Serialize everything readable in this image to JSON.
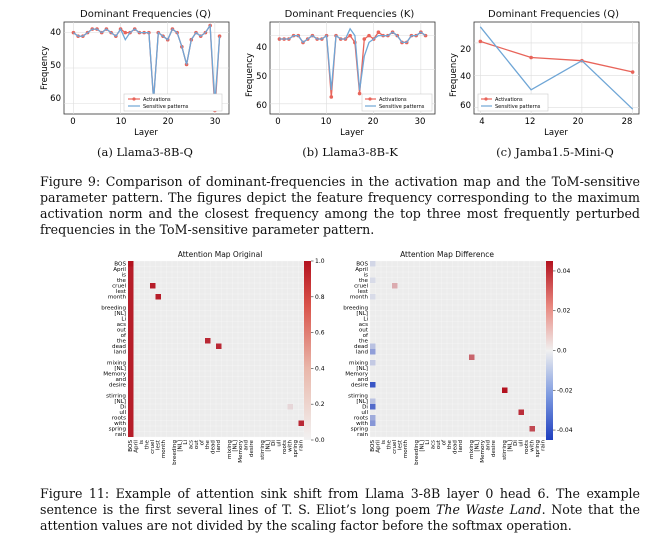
{
  "line_charts": [
    {
      "id": "q",
      "title": "Dominant Frequencies (Q)",
      "xlabel": "Layer",
      "ylabel": "Frequency",
      "xticks": [
        0,
        10,
        20,
        30
      ],
      "yticks": [
        40,
        50,
        60
      ],
      "subcaption": "(a) Llama3-8B-Q"
    },
    {
      "id": "k",
      "title": "Dominant Frequencies (K)",
      "xlabel": "Layer",
      "ylabel": "Frequency",
      "xticks": [
        0,
        10,
        20,
        30
      ],
      "yticks": [
        40,
        50,
        60
      ],
      "subcaption": "(b) Llama3-8B-K"
    },
    {
      "id": "jamba",
      "title": "Dominant Frequencies (Q)",
      "xlabel": "Layer",
      "ylabel": "Frequency",
      "xticks": [
        4,
        12,
        20,
        28
      ],
      "yticks": [
        20,
        40,
        60
      ],
      "subcaption": "(c) Jamba1.5-Mini-Q"
    }
  ],
  "legend": {
    "activations": "Activations",
    "sensitive": "Sensitive patterns"
  },
  "colors": {
    "activations": "#e8645a",
    "sensitive": "#6fa6d6",
    "heat_high": "#c41e2a",
    "heat_low": "#2b4fc4",
    "grid": "#dddddd",
    "heat_bg": "#ececec"
  },
  "captions": {
    "fig9": "Figure 9: Comparison of dominant-frequencies in the activation map and the ToM-sensitive parameter pattern. The figures depict the feature frequency corresponding to the maximum activation norm and the closest frequency among the top three most frequently perturbed frequencies in the ToM-sensitive parameter pattern.",
    "fig11_a": "Figure 11: Example of attention sink shift from Llama 3-8B layer 0 head 6. The example sentence is the first several lines of T. S. Eliot’s long poem ",
    "fig11_em": "The Waste Land",
    "fig11_b": ". Note that the attention values are not divided by the scaling factor before the softmax operation."
  },
  "heatmaps": {
    "original_title": "Attention Map Original",
    "difference_title": "Attention Map Difference",
    "tokens": [
      "BOS",
      "April",
      "is",
      "the",
      "cruel",
      "lest",
      "month",
      "",
      "breeding",
      "[NL]",
      "Li",
      "acs",
      "out",
      "of",
      "the",
      "dead",
      "land",
      "",
      "mixing",
      "[NL]",
      "Memory",
      "and",
      "desire",
      "",
      "stirring",
      "[NL]",
      "Di",
      "ull",
      "roots",
      "with",
      "spring",
      "rain"
    ],
    "original_colorbar": [
      0.0,
      0.2,
      0.4,
      0.6,
      0.8,
      1.0
    ],
    "difference_colorbar": [
      -0.04,
      -0.02,
      0.0,
      0.02,
      0.04
    ]
  },
  "chart_data": [
    {
      "type": "line",
      "title": "Dominant Frequencies (Q)",
      "xlabel": "Layer",
      "ylabel": "Frequency",
      "xlim": [
        -2,
        33
      ],
      "ylim": [
        63,
        37
      ],
      "y_inverted": true,
      "x": [
        0,
        1,
        2,
        3,
        4,
        5,
        6,
        7,
        8,
        9,
        10,
        11,
        12,
        13,
        14,
        15,
        16,
        17,
        18,
        19,
        20,
        21,
        22,
        23,
        24,
        25,
        26,
        27,
        28,
        29,
        30,
        31
      ],
      "series": [
        {
          "name": "Activations",
          "values": [
            40,
            41,
            41,
            40,
            39,
            39,
            40,
            39,
            40,
            41,
            39,
            40,
            40,
            39,
            40,
            40,
            40,
            59,
            40,
            41,
            42,
            39,
            40,
            44,
            49,
            42,
            40,
            41,
            40,
            38,
            62,
            41
          ]
        },
        {
          "name": "Sensitive patterns",
          "values": [
            40,
            41,
            41,
            40,
            39,
            39,
            40,
            39,
            40,
            41,
            39,
            42,
            40,
            39,
            40,
            40,
            40,
            59,
            40,
            41,
            42,
            39,
            40,
            44,
            49,
            42,
            40,
            41,
            40,
            38,
            60,
            41
          ]
        }
      ]
    },
    {
      "type": "line",
      "title": "Dominant Frequencies (K)",
      "xlabel": "Layer",
      "ylabel": "Frequency",
      "xlim": [
        -2,
        33
      ],
      "ylim": [
        63,
        36
      ],
      "y_inverted": true,
      "x": [
        0,
        1,
        2,
        3,
        4,
        5,
        6,
        7,
        8,
        9,
        10,
        11,
        12,
        13,
        14,
        15,
        16,
        17,
        18,
        19,
        20,
        21,
        22,
        23,
        24,
        25,
        26,
        27,
        28,
        29,
        30,
        31
      ],
      "series": [
        {
          "name": "Activations",
          "values": [
            41,
            41,
            41,
            40,
            40,
            42,
            41,
            40,
            41,
            41,
            40,
            58,
            40,
            41,
            41,
            40,
            42,
            57,
            41,
            40,
            41,
            39,
            40,
            40,
            39,
            40,
            42,
            42,
            40,
            40,
            39,
            40
          ]
        },
        {
          "name": "Sensitive patterns",
          "values": [
            41,
            41,
            41,
            40,
            40,
            42,
            41,
            40,
            41,
            41,
            40,
            56,
            40,
            41,
            41,
            38,
            40,
            56,
            46,
            42,
            41,
            40,
            40,
            40,
            39,
            40,
            42,
            42,
            40,
            40,
            39,
            40
          ]
        }
      ]
    },
    {
      "type": "line",
      "title": "Dominant Frequencies (Q)",
      "xlabel": "Layer",
      "ylabel": "Frequency",
      "xlim": [
        3,
        29
      ],
      "ylim": [
        64,
        7
      ],
      "y_inverted": true,
      "x": [
        4,
        12,
        20,
        28
      ],
      "series": [
        {
          "name": "Activations",
          "values": [
            19,
            29,
            31,
            38
          ]
        },
        {
          "name": "Sensitive patterns",
          "values": [
            10,
            49,
            31,
            61
          ]
        }
      ]
    },
    {
      "type": "heatmap",
      "title": "Attention Map Original",
      "rows": 32,
      "cols": 32,
      "value_range": [
        0,
        1
      ],
      "cells": [
        {
          "row": 0,
          "col": 0,
          "value": 1.0
        },
        {
          "row": 1,
          "col": 0,
          "value": 0.95
        },
        {
          "row": 2,
          "col": 0,
          "value": 0.95
        },
        {
          "row": 3,
          "col": 0,
          "value": 0.95
        },
        {
          "row": 4,
          "col": 0,
          "value": 0.95
        },
        {
          "row": 4,
          "col": 4,
          "value": 0.95
        },
        {
          "row": 5,
          "col": 0,
          "value": 0.95
        },
        {
          "row": 6,
          "col": 0,
          "value": 0.95
        },
        {
          "row": 6,
          "col": 5,
          "value": 0.95
        },
        {
          "row": 7,
          "col": 0,
          "value": 0.95
        },
        {
          "row": 8,
          "col": 0,
          "value": 0.95
        },
        {
          "row": 9,
          "col": 0,
          "value": 0.95
        },
        {
          "row": 10,
          "col": 0,
          "value": 0.95
        },
        {
          "row": 11,
          "col": 0,
          "value": 0.95
        },
        {
          "row": 12,
          "col": 0,
          "value": 0.95
        },
        {
          "row": 13,
          "col": 0,
          "value": 0.95
        },
        {
          "row": 14,
          "col": 0,
          "value": 0.95
        },
        {
          "row": 14,
          "col": 14,
          "value": 0.9
        },
        {
          "row": 15,
          "col": 0,
          "value": 0.95
        },
        {
          "row": 15,
          "col": 16,
          "value": 0.9
        },
        {
          "row": 16,
          "col": 0,
          "value": 0.95
        },
        {
          "row": 17,
          "col": 0,
          "value": 0.95
        },
        {
          "row": 18,
          "col": 0,
          "value": 0.95
        },
        {
          "row": 19,
          "col": 0,
          "value": 0.95
        },
        {
          "row": 20,
          "col": 0,
          "value": 0.95
        },
        {
          "row": 21,
          "col": 0,
          "value": 0.95
        },
        {
          "row": 22,
          "col": 0,
          "value": 0.95
        },
        {
          "row": 23,
          "col": 0,
          "value": 0.95
        },
        {
          "row": 24,
          "col": 0,
          "value": 0.95
        },
        {
          "row": 25,
          "col": 0,
          "value": 0.95
        },
        {
          "row": 26,
          "col": 0,
          "value": 0.95
        },
        {
          "row": 26,
          "col": 29,
          "value": 0.1
        },
        {
          "row": 27,
          "col": 0,
          "value": 0.95
        },
        {
          "row": 28,
          "col": 0,
          "value": 0.95
        },
        {
          "row": 29,
          "col": 0,
          "value": 0.95
        },
        {
          "row": 29,
          "col": 31,
          "value": 0.9
        },
        {
          "row": 30,
          "col": 0,
          "value": 0.95
        },
        {
          "row": 31,
          "col": 0,
          "value": 0.95
        }
      ]
    },
    {
      "type": "heatmap",
      "title": "Attention Map Difference",
      "rows": 32,
      "cols": 32,
      "value_range": [
        -0.04,
        0.04
      ],
      "cells": [
        {
          "row": 0,
          "col": 0,
          "value": -0.005
        },
        {
          "row": 3,
          "col": 0,
          "value": -0.004
        },
        {
          "row": 4,
          "col": 4,
          "value": 0.012
        },
        {
          "row": 6,
          "col": 0,
          "value": -0.004
        },
        {
          "row": 15,
          "col": 0,
          "value": -0.01
        },
        {
          "row": 16,
          "col": 0,
          "value": -0.018
        },
        {
          "row": 17,
          "col": 18,
          "value": 0.025
        },
        {
          "row": 18,
          "col": 0,
          "value": -0.008
        },
        {
          "row": 22,
          "col": 0,
          "value": -0.035
        },
        {
          "row": 23,
          "col": 24,
          "value": 0.04
        },
        {
          "row": 25,
          "col": 0,
          "value": -0.01
        },
        {
          "row": 26,
          "col": 0,
          "value": -0.03
        },
        {
          "row": 27,
          "col": 27,
          "value": 0.035
        },
        {
          "row": 29,
          "col": 0,
          "value": -0.02
        },
        {
          "row": 30,
          "col": 29,
          "value": 0.03
        },
        {
          "row": 28,
          "col": 0,
          "value": -0.015
        }
      ]
    }
  ]
}
